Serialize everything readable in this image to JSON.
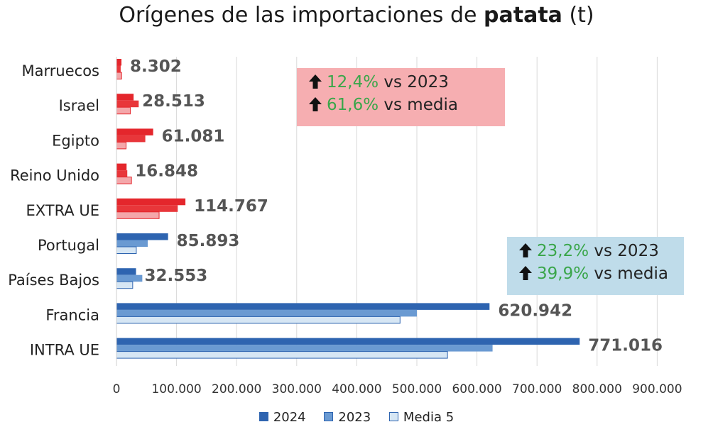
{
  "title": {
    "prefix": "Orígenes de las importaciones de",
    "bold": "patata",
    "suffix": "(t)"
  },
  "colors": {
    "extra_2024": "#e4262c",
    "extra_2023": "#e8363a",
    "extra_media": "#f4a7aa",
    "intra_2024": "#2e64b0",
    "intra_2023": "#6a9ad2",
    "intra_media": "#d6e6f4",
    "grid": "#d9d9d9",
    "callout_extra_bg": "#f6aeb1",
    "callout_intra_bg": "#bfdcea",
    "value_label": "#555555",
    "highlight_green": "#3aa64a"
  },
  "callouts": {
    "extra": {
      "line1_pct": "12,4%",
      "line1_text": "vs 2023",
      "line2_pct": "61,6%",
      "line2_text": "vs media"
    },
    "intra": {
      "line1_pct": "23,2%",
      "line1_text": "vs 2023",
      "line2_pct": "39,9%",
      "line2_text": "vs media"
    }
  },
  "legend": [
    "2024",
    "2023",
    "Media 5"
  ],
  "chart_data": {
    "type": "bar",
    "orientation": "horizontal",
    "title": "Orígenes de las importaciones de patata (t)",
    "xlabel": "",
    "ylabel": "",
    "xlim": [
      0,
      900000
    ],
    "xticks": [
      0,
      100000,
      200000,
      300000,
      400000,
      500000,
      600000,
      700000,
      800000,
      900000
    ],
    "xtick_labels": [
      "0",
      "100.000",
      "200.000",
      "300.000",
      "400.000",
      "500.000",
      "600.000",
      "700.000",
      "800.000",
      "900.000"
    ],
    "grid": true,
    "legend_position": "bottom",
    "categories": [
      "Marruecos",
      "Israel",
      "Egipto",
      "Reino Unido",
      "EXTRA UE",
      "Portugal",
      "Países Bajos",
      "Francia",
      "INTRA UE"
    ],
    "groups": [
      "extra",
      "extra",
      "extra",
      "extra",
      "extra",
      "intra",
      "intra",
      "intra",
      "intra"
    ],
    "series": [
      {
        "name": "2024",
        "values": [
          8302,
          28513,
          61081,
          16848,
          114767,
          85893,
          32553,
          620942,
          771016
        ]
      },
      {
        "name": "2023",
        "values": [
          7000,
          37000,
          48000,
          18000,
          102000,
          52000,
          43000,
          500000,
          626000
        ]
      },
      {
        "name": "Media 5",
        "values": [
          8500,
          23000,
          16000,
          25000,
          71000,
          33000,
          27000,
          472000,
          551000
        ]
      }
    ],
    "value_labels": [
      "8.302",
      "28.513",
      "61.081",
      "16.848",
      "114.767",
      "85.893",
      "32.553",
      "620.942",
      "771.016"
    ]
  }
}
